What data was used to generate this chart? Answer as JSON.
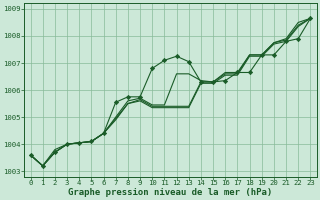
{
  "xlabel": "Graphe pression niveau de la mer (hPa)",
  "xlim": [
    -0.5,
    23.5
  ],
  "ylim": [
    1002.8,
    1009.2
  ],
  "yticks": [
    1003,
    1004,
    1005,
    1006,
    1007,
    1008,
    1009
  ],
  "xticks": [
    0,
    1,
    2,
    3,
    4,
    5,
    6,
    7,
    8,
    9,
    10,
    11,
    12,
    13,
    14,
    15,
    16,
    17,
    18,
    19,
    20,
    21,
    22,
    23
  ],
  "bg_color": "#cce8d8",
  "grid_color": "#88bb99",
  "line_color": "#1a5c28",
  "series": [
    [
      1003.6,
      1003.2,
      1003.7,
      1004.0,
      1004.05,
      1004.1,
      1004.4,
      1005.55,
      1005.75,
      1005.75,
      1006.8,
      1007.1,
      1007.25,
      1007.05,
      1006.3,
      1006.3,
      1006.35,
      1006.65,
      1006.65,
      1007.3,
      1007.3,
      1007.8,
      1007.9,
      1008.65
    ],
    [
      1003.6,
      1003.2,
      1003.7,
      1004.0,
      1004.05,
      1004.1,
      1004.4,
      1005.0,
      1005.6,
      1005.7,
      1005.45,
      1005.45,
      1006.6,
      1006.6,
      1006.35,
      1006.3,
      1006.65,
      1006.65,
      1007.3,
      1007.3,
      1007.75,
      1007.9,
      1008.5,
      1008.65
    ],
    [
      1003.6,
      1003.2,
      1003.7,
      1004.0,
      1004.05,
      1004.1,
      1004.4,
      1004.95,
      1005.5,
      1005.65,
      1005.4,
      1005.4,
      1005.4,
      1005.4,
      1006.3,
      1006.3,
      1006.6,
      1006.6,
      1007.3,
      1007.3,
      1007.75,
      1007.85,
      1008.4,
      1008.65
    ],
    [
      1003.6,
      1003.2,
      1003.8,
      1004.0,
      1004.05,
      1004.1,
      1004.4,
      1004.9,
      1005.5,
      1005.6,
      1005.35,
      1005.35,
      1005.35,
      1005.35,
      1006.25,
      1006.25,
      1006.55,
      1006.55,
      1007.25,
      1007.25,
      1007.7,
      1007.8,
      1008.35,
      1008.65
    ]
  ],
  "marker": "D",
  "markersize": 2.2,
  "linewidth": 0.8,
  "xlabel_fontsize": 6.5,
  "tick_labelsize": 5.2
}
